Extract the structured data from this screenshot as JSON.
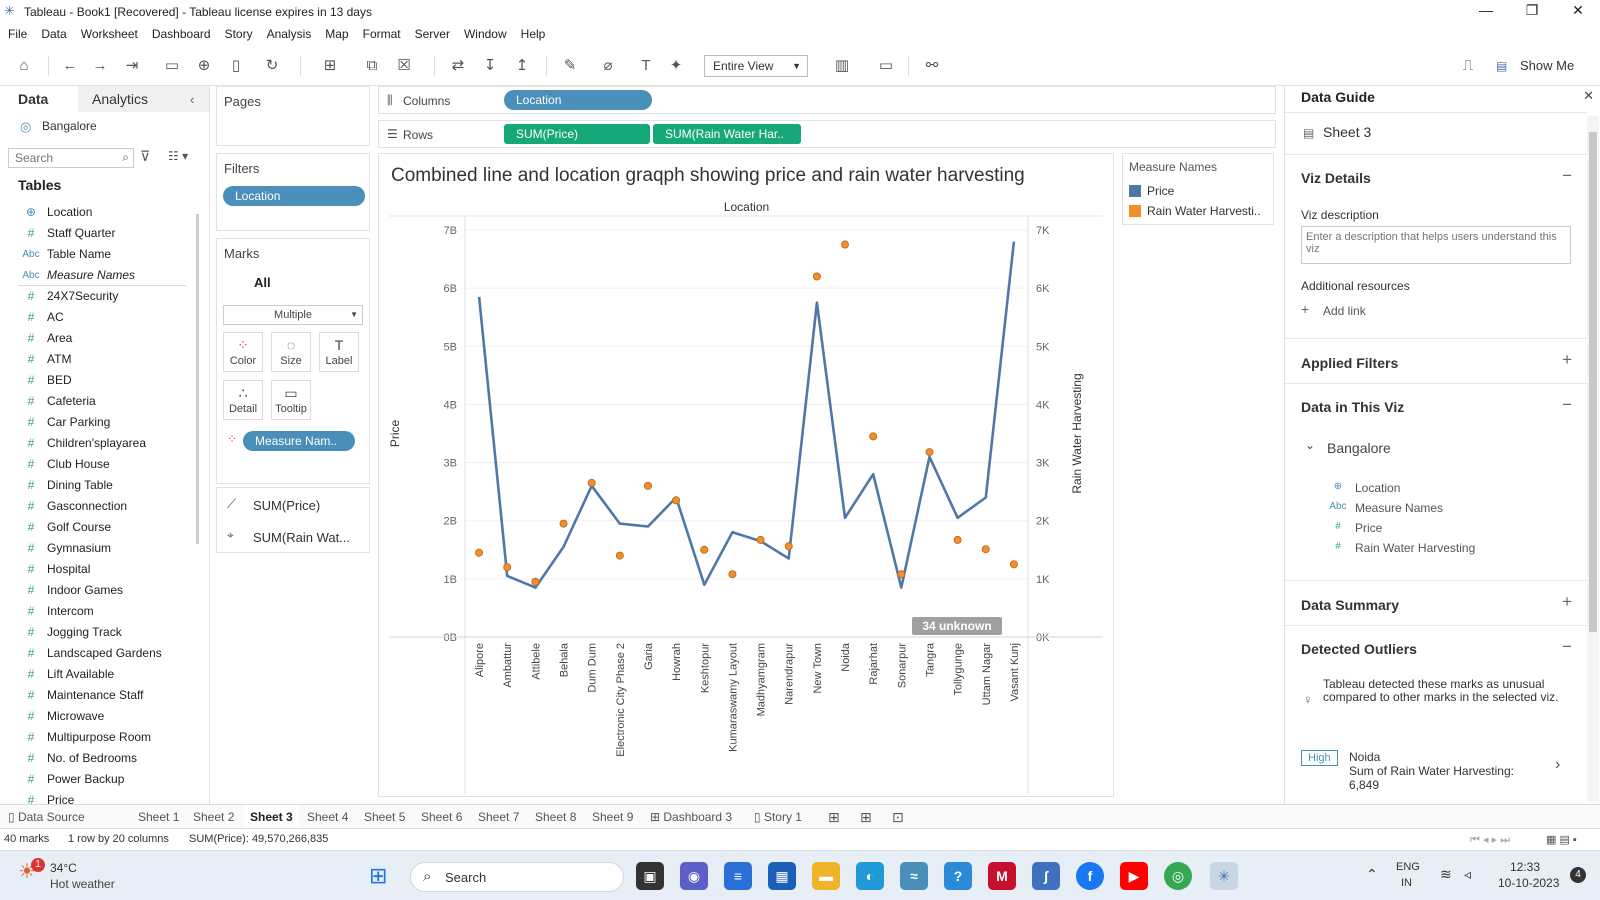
{
  "window": {
    "title": "Tableau - Book1 [Recovered] - Tableau license expires in 13 days",
    "controls": [
      "—",
      "❐",
      "✕"
    ]
  },
  "menu": [
    "File",
    "Data",
    "Worksheet",
    "Dashboard",
    "Story",
    "Analysis",
    "Map",
    "Format",
    "Server",
    "Window",
    "Help"
  ],
  "toolbar": {
    "view_mode": "Entire View",
    "show_me": "Show Me"
  },
  "data_pane": {
    "tabs": [
      "Data",
      "Analytics"
    ],
    "datasource": "Bangalore",
    "search_placeholder": "Search",
    "tables_label": "Tables",
    "fields": [
      {
        "icon": "globe",
        "type": "⊕",
        "name": "Location"
      },
      {
        "icon": "measure",
        "type": "#",
        "name": "Staff Quarter"
      },
      {
        "icon": "text",
        "type": "Abc",
        "name": "Table Name"
      },
      {
        "icon": "text",
        "type": "Abc",
        "name": "Measure Names"
      },
      {
        "icon": "measure",
        "type": "#",
        "name": "24X7Security"
      },
      {
        "icon": "measure",
        "type": "#",
        "name": "AC"
      },
      {
        "icon": "measure",
        "type": "#",
        "name": "Area"
      },
      {
        "icon": "measure",
        "type": "#",
        "name": "ATM"
      },
      {
        "icon": "measure",
        "type": "#",
        "name": "BED"
      },
      {
        "icon": "measure",
        "type": "#",
        "name": "Cafeteria"
      },
      {
        "icon": "measure",
        "type": "#",
        "name": "Car Parking"
      },
      {
        "icon": "measure",
        "type": "#",
        "name": "Children'splayarea"
      },
      {
        "icon": "measure",
        "type": "#",
        "name": "Club House"
      },
      {
        "icon": "measure",
        "type": "#",
        "name": "Dining Table"
      },
      {
        "icon": "measure",
        "type": "#",
        "name": "Gasconnection"
      },
      {
        "icon": "measure",
        "type": "#",
        "name": "Golf Course"
      },
      {
        "icon": "measure",
        "type": "#",
        "name": "Gymnasium"
      },
      {
        "icon": "measure",
        "type": "#",
        "name": "Hospital"
      },
      {
        "icon": "measure",
        "type": "#",
        "name": "Indoor Games"
      },
      {
        "icon": "measure",
        "type": "#",
        "name": "Intercom"
      },
      {
        "icon": "measure",
        "type": "#",
        "name": "Jogging Track"
      },
      {
        "icon": "measure",
        "type": "#",
        "name": "Landscaped Gardens"
      },
      {
        "icon": "measure",
        "type": "#",
        "name": "Lift Available"
      },
      {
        "icon": "measure",
        "type": "#",
        "name": "Maintenance Staff"
      },
      {
        "icon": "measure",
        "type": "#",
        "name": "Microwave"
      },
      {
        "icon": "measure",
        "type": "#",
        "name": "Multipurpose Room"
      },
      {
        "icon": "measure",
        "type": "#",
        "name": "No. of Bedrooms"
      },
      {
        "icon": "measure",
        "type": "#",
        "name": "Power Backup"
      },
      {
        "icon": "measure",
        "type": "#",
        "name": "Price"
      }
    ]
  },
  "shelves": {
    "pages_label": "Pages",
    "filters_label": "Filters",
    "filter_pill": "Location",
    "columns_label": "Columns",
    "rows_label": "Rows",
    "columns_pill": "Location",
    "rows_pills": [
      "SUM(Price)",
      "SUM(Rain Water Har.."
    ]
  },
  "marks": {
    "label": "Marks",
    "all_label": "All",
    "mark_type": "Multiple",
    "buttons": [
      "Color",
      "Size",
      "Label",
      "Detail",
      "Tooltip"
    ],
    "color_pill": "Measure Nam..",
    "measure_rows": [
      "SUM(Price)",
      "SUM(Rain Wat..."
    ]
  },
  "legend": {
    "title": "Measure Names",
    "items": [
      {
        "label": "Price",
        "color": "#4e79a7"
      },
      {
        "label": "Rain Water Harvesti..",
        "color": "#f28e2b"
      }
    ]
  },
  "chart_data": {
    "type": "line",
    "title": "Combined line and location graqph showing price and rain water harvesting",
    "xlabel": "Location",
    "ylabel": "Price",
    "y2label": "Rain Water Harvesting",
    "categories": [
      "Alipore",
      "Ambattur",
      "Attibele",
      "Behala",
      "Dum Dum",
      "Electronic City Phase 2",
      "Garia",
      "Howrah",
      "Keshtopur",
      "Kumaraswamy Layout",
      "Madhyamgram",
      "Narendrapur",
      "New Town",
      "Noida",
      "Rajarhat",
      "Sonarpur",
      "Tangra",
      "Tollygunge",
      "Uttam Nagar",
      "Vasant Kunj"
    ],
    "ylim": [
      0,
      7000000000
    ],
    "yticks": [
      "0B",
      "1B",
      "2B",
      "3B",
      "4B",
      "5B",
      "6B",
      "7B"
    ],
    "y2lim": [
      0,
      7000
    ],
    "y2ticks": [
      "0K",
      "1K",
      "2K",
      "3K",
      "4K",
      "5K",
      "6K",
      "7K"
    ],
    "series": [
      {
        "name": "Price",
        "axis": "left",
        "mark": "line",
        "color": "#4e79a7",
        "values": [
          5850000000,
          1050000000,
          850000000,
          1550000000,
          2600000000,
          1950000000,
          1900000000,
          2400000000,
          900000000,
          1800000000,
          1650000000,
          1350000000,
          5750000000,
          2050000000,
          2800000000,
          850000000,
          3100000000,
          2050000000,
          2400000000,
          6800000000
        ]
      },
      {
        "name": "Rain Water Harvesting",
        "axis": "right",
        "mark": "circle",
        "color": "#f28e2b",
        "values": [
          1450,
          1200,
          950,
          1950,
          2650,
          1400,
          2600,
          2350,
          1500,
          1080,
          1670,
          1560,
          6200,
          6750,
          3450,
          1080,
          3180,
          1670,
          1510,
          1250
        ]
      }
    ],
    "unknown_badge": "34 unknown",
    "grid": true
  },
  "guide": {
    "title": "Data Guide",
    "sheet": "Sheet 3",
    "viz_details": "Viz Details",
    "viz_description_label": "Viz description",
    "viz_description_placeholder": "Enter a description that helps users understand this viz",
    "additional_resources": "Additional resources",
    "add_link": "Add link",
    "applied_filters": "Applied Filters",
    "data_in_viz": "Data in This Viz",
    "source": "Bangalore",
    "fields": [
      {
        "type": "⊕",
        "name": "Location"
      },
      {
        "type": "Abc",
        "name": "Measure Names"
      },
      {
        "type": "#",
        "name": "Price"
      },
      {
        "type": "#",
        "name": "Rain Water Harvesting"
      }
    ],
    "data_summary": "Data Summary",
    "detected_outliers": "Detected Outliers",
    "outlier_text": "Tableau detected these marks as unusual compared to other marks in the selected viz.",
    "outlier_badge": "High",
    "outlier_name": "Noida",
    "outlier_detail": "Sum of Rain Water Harvesting:",
    "outlier_value": "6,849"
  },
  "tabs": {
    "data_source": "Data Source",
    "sheets": [
      "Sheet 1",
      "Sheet 2",
      "Sheet 3",
      "Sheet 4",
      "Sheet 5",
      "Sheet 6",
      "Sheet 7",
      "Sheet 8",
      "Sheet 9"
    ],
    "dashboard": "Dashboard 3",
    "story": "Story 1"
  },
  "status": {
    "marks": "40 marks",
    "layout": "1 row by 20 columns",
    "sum": "SUM(Price): 49,570,266,835"
  },
  "taskbar": {
    "weather_temp": "34°C",
    "weather_text": "Hot weather",
    "weather_badge": "1",
    "search": "Search",
    "lang1": "ENG",
    "lang2": "IN",
    "time": "12:33",
    "date": "10-10-2023",
    "notif": "4"
  }
}
